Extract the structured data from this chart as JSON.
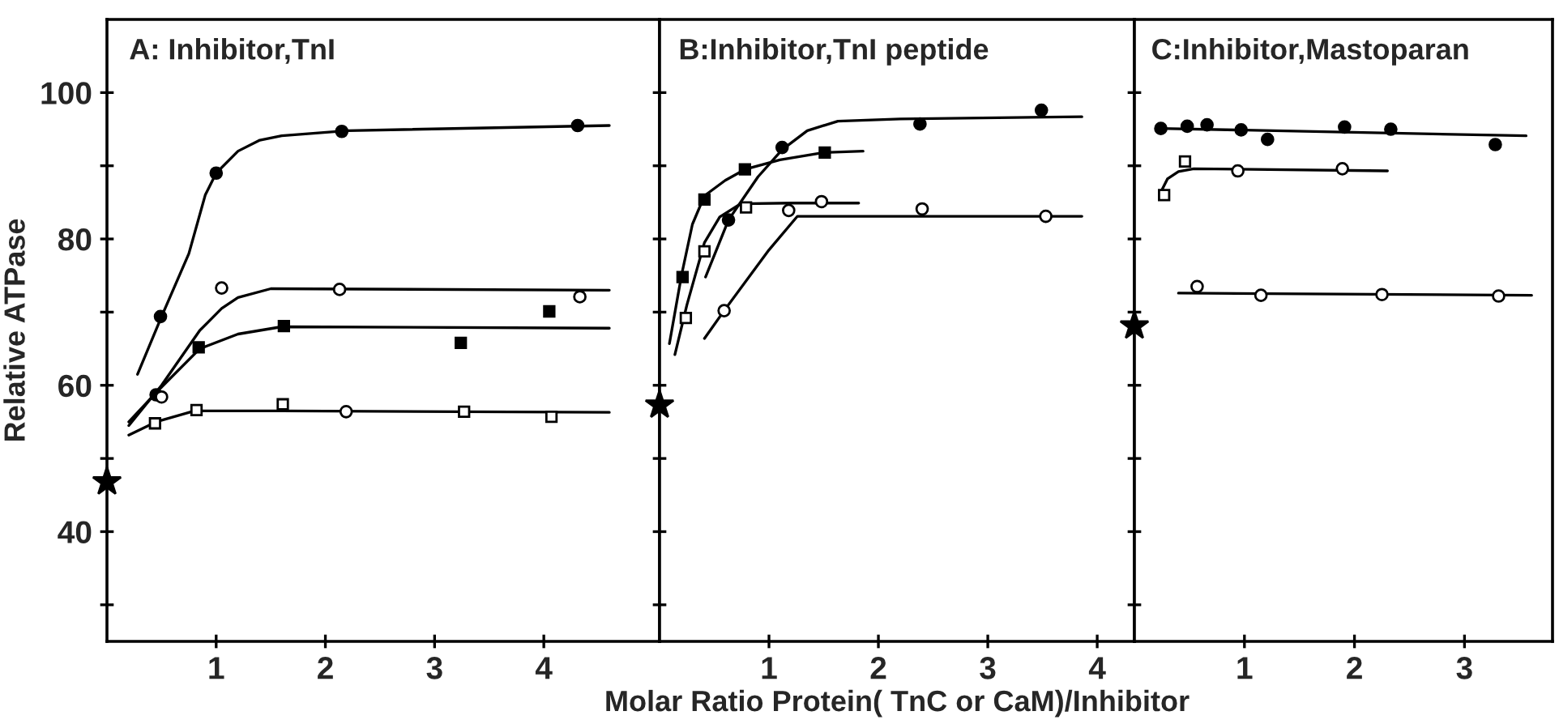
{
  "chart_data": [
    {
      "type": "scatter",
      "title": "A: Inhibitor,TnI",
      "ylabel": "Relative ATPase",
      "xlim": [
        0,
        5.06
      ],
      "ylim": [
        25,
        110
      ],
      "xticks": [
        1,
        2,
        3,
        4
      ],
      "yticks": [
        {
          "value": 30,
          "label": null
        },
        40,
        {
          "value": 50,
          "label": null
        },
        60,
        {
          "value": 70,
          "label": null
        },
        80,
        {
          "value": 90,
          "label": null
        },
        100
      ],
      "series": [
        {
          "type": "line",
          "color": "#000000",
          "line_style": "solid",
          "marker": "none",
          "x": [
            0.28,
            0.5,
            0.75,
            0.9,
            1.0,
            1.2,
            1.4,
            1.6,
            2.2,
            4.6
          ],
          "values": [
            61.5,
            69.4,
            78,
            86,
            89,
            92,
            93.5,
            94.1,
            94.8,
            95.5
          ]
        },
        {
          "type": "line",
          "color": "#000000",
          "line_style": "solid",
          "marker": "none",
          "x": [
            0.2,
            0.5,
            0.85,
            1.05,
            1.2,
            1.5,
            4.6
          ],
          "values": [
            54.5,
            60,
            67.5,
            70.5,
            72,
            73.2,
            73
          ]
        },
        {
          "type": "line",
          "color": "#000000",
          "line_style": "solid",
          "marker": "none",
          "x": [
            0.2,
            0.45,
            0.85,
            1.2,
            1.6,
            4.6
          ],
          "values": [
            55,
            59,
            65,
            67,
            68,
            67.8
          ]
        },
        {
          "type": "line",
          "color": "#000000",
          "line_style": "solid",
          "marker": "none",
          "x": [
            0.2,
            0.45,
            0.8,
            1.6,
            4.6
          ],
          "values": [
            53.2,
            55,
            56.5,
            56.5,
            56.3
          ]
        },
        {
          "type": "scatter",
          "color": "#000000",
          "marker": "circle",
          "x": [
            0.49,
            1.0,
            2.15,
            4.31,
            0.45
          ],
          "values": [
            69.4,
            89.0,
            94.7,
            95.5,
            58.7
          ]
        },
        {
          "type": "scatter",
          "color": "#000000",
          "marker": "square",
          "x": [
            0.84,
            1.62,
            3.24,
            4.05
          ],
          "values": [
            65.2,
            68.1,
            65.8,
            70.1
          ]
        },
        {
          "type": "scatter",
          "color": "#ffffff",
          "marker": "circle",
          "x": [
            0.5,
            1.05,
            2.13,
            4.33,
            2.19
          ],
          "values": [
            58.4,
            73.3,
            73.1,
            72.1,
            56.4
          ]
        },
        {
          "type": "scatter",
          "color": "#ffffff",
          "marker": "square",
          "x": [
            0.44,
            0.82,
            1.61,
            3.27,
            4.07
          ],
          "values": [
            54.8,
            56.6,
            57.4,
            56.4,
            55.7
          ]
        },
        {
          "type": "scatter",
          "color": "#000000",
          "marker": "star",
          "x": [
            0
          ],
          "values": [
            46.8
          ]
        }
      ]
    },
    {
      "type": "scatter",
      "title": "B:Inhibitor,TnI peptide",
      "xlabel": "Molar Ratio Protein( TnC or CaM)/Inhibitor",
      "xlim": [
        0,
        4.34
      ],
      "ylim": [
        25,
        110
      ],
      "xticks": [
        1,
        2,
        3,
        4
      ],
      "tick_labels": "x",
      "yticks": [
        {
          "value": 30,
          "label": null
        },
        {
          "value": 40,
          "label": null
        },
        {
          "value": 50,
          "label": null
        },
        {
          "value": 60,
          "label": null
        },
        {
          "value": 70,
          "label": null
        },
        {
          "value": 80,
          "label": null
        },
        {
          "value": 90,
          "label": null
        },
        {
          "value": 100,
          "label": null
        }
      ],
      "series": [
        {
          "type": "line",
          "color": "#000000",
          "line_style": "solid",
          "marker": "none",
          "x": [
            0.09,
            0.2,
            0.3,
            0.41,
            0.6,
            0.78,
            1.1,
            1.5,
            1.86
          ],
          "values": [
            65.7,
            75,
            82,
            85.9,
            88,
            89.5,
            90.8,
            91.8,
            92.0
          ]
        },
        {
          "type": "line",
          "color": "#000000",
          "line_style": "solid",
          "marker": "none",
          "x": [
            0.14,
            0.25,
            0.41,
            0.55,
            0.74,
            1.2,
            1.82
          ],
          "values": [
            64.2,
            71,
            79.5,
            83,
            84.8,
            84.9,
            84.9
          ]
        },
        {
          "type": "line",
          "color": "#000000",
          "line_style": "solid",
          "marker": "none",
          "x": [
            0.42,
            0.63,
            0.9,
            1.12,
            1.35,
            1.63,
            2.2,
            3.86
          ],
          "values": [
            74.8,
            82.6,
            88.5,
            92.2,
            94.8,
            96.1,
            96.4,
            96.7
          ]
        },
        {
          "type": "line",
          "color": "#000000",
          "line_style": "solid",
          "marker": "none",
          "x": [
            0.41,
            0.59,
            1.0,
            1.26,
            3.86
          ],
          "values": [
            66.4,
            70.2,
            78.5,
            83.1,
            83.1
          ]
        },
        {
          "type": "scatter",
          "color": "#000000",
          "marker": "circle",
          "x": [
            0.63,
            1.12,
            2.38,
            3.49
          ],
          "values": [
            82.6,
            92.5,
            95.7,
            97.6
          ]
        },
        {
          "type": "scatter",
          "color": "#000000",
          "marker": "square",
          "x": [
            0.21,
            0.41,
            0.78,
            1.51
          ],
          "values": [
            74.8,
            85.4,
            89.5,
            91.8
          ]
        },
        {
          "type": "scatter",
          "color": "#ffffff",
          "marker": "square",
          "x": [
            0.24,
            0.41,
            0.79
          ],
          "values": [
            69.2,
            78.3,
            84.3
          ]
        },
        {
          "type": "scatter",
          "color": "#ffffff",
          "marker": "circle",
          "x": [
            0.59,
            1.18,
            1.48,
            2.4,
            3.53
          ],
          "values": [
            70.2,
            83.9,
            85.1,
            84.1,
            83.1
          ]
        },
        {
          "type": "scatter",
          "color": "#000000",
          "marker": "star",
          "x": [
            0
          ],
          "values": [
            57.3
          ]
        }
      ]
    },
    {
      "type": "scatter",
      "title": "C:Inhibitor,Mastoparan",
      "xlim": [
        0,
        3.8
      ],
      "ylim": [
        25,
        110
      ],
      "xticks": [
        1,
        2,
        3
      ],
      "tick_labels": "x",
      "yticks": [
        {
          "value": 30,
          "label": null
        },
        {
          "value": 40,
          "label": null
        },
        {
          "value": 50,
          "label": null
        },
        {
          "value": 60,
          "label": null
        },
        {
          "value": 70,
          "label": null
        },
        {
          "value": 80,
          "label": null
        },
        {
          "value": 90,
          "label": null
        },
        {
          "value": 100,
          "label": null
        }
      ],
      "series": [
        {
          "type": "line",
          "color": "#000000",
          "line_style": "solid",
          "marker": "none",
          "x": [
            0.24,
            3.56
          ],
          "values": [
            95.1,
            94.1
          ]
        },
        {
          "type": "line",
          "color": "#000000",
          "line_style": "solid",
          "marker": "none",
          "x": [
            0.24,
            0.3,
            0.4,
            0.54,
            2.3
          ],
          "values": [
            86.4,
            88.2,
            89.2,
            89.6,
            89.3
          ]
        },
        {
          "type": "line",
          "color": "#000000",
          "line_style": "solid",
          "marker": "none",
          "x": [
            0.4,
            3.61
          ],
          "values": [
            72.6,
            72.3
          ]
        },
        {
          "type": "scatter",
          "color": "#000000",
          "marker": "circle",
          "x": [
            0.24,
            0.48,
            0.66,
            0.97,
            1.21,
            1.91,
            2.33,
            3.28
          ],
          "values": [
            95.1,
            95.4,
            95.6,
            94.9,
            93.6,
            95.3,
            95.0,
            92.9
          ]
        },
        {
          "type": "scatter",
          "color": "#ffffff",
          "marker": "square",
          "x": [
            0.27,
            0.46
          ],
          "values": [
            86.0,
            90.6
          ]
        },
        {
          "type": "scatter",
          "color": "#ffffff",
          "marker": "circle",
          "x": [
            0.94,
            1.89,
            0.57,
            1.15,
            2.25,
            3.31
          ],
          "values": [
            89.3,
            89.6,
            73.5,
            72.3,
            72.4,
            72.2
          ]
        },
        {
          "type": "scatter",
          "color": "#000000",
          "marker": "star",
          "x": [
            0
          ],
          "values": [
            68.1
          ]
        }
      ]
    }
  ]
}
